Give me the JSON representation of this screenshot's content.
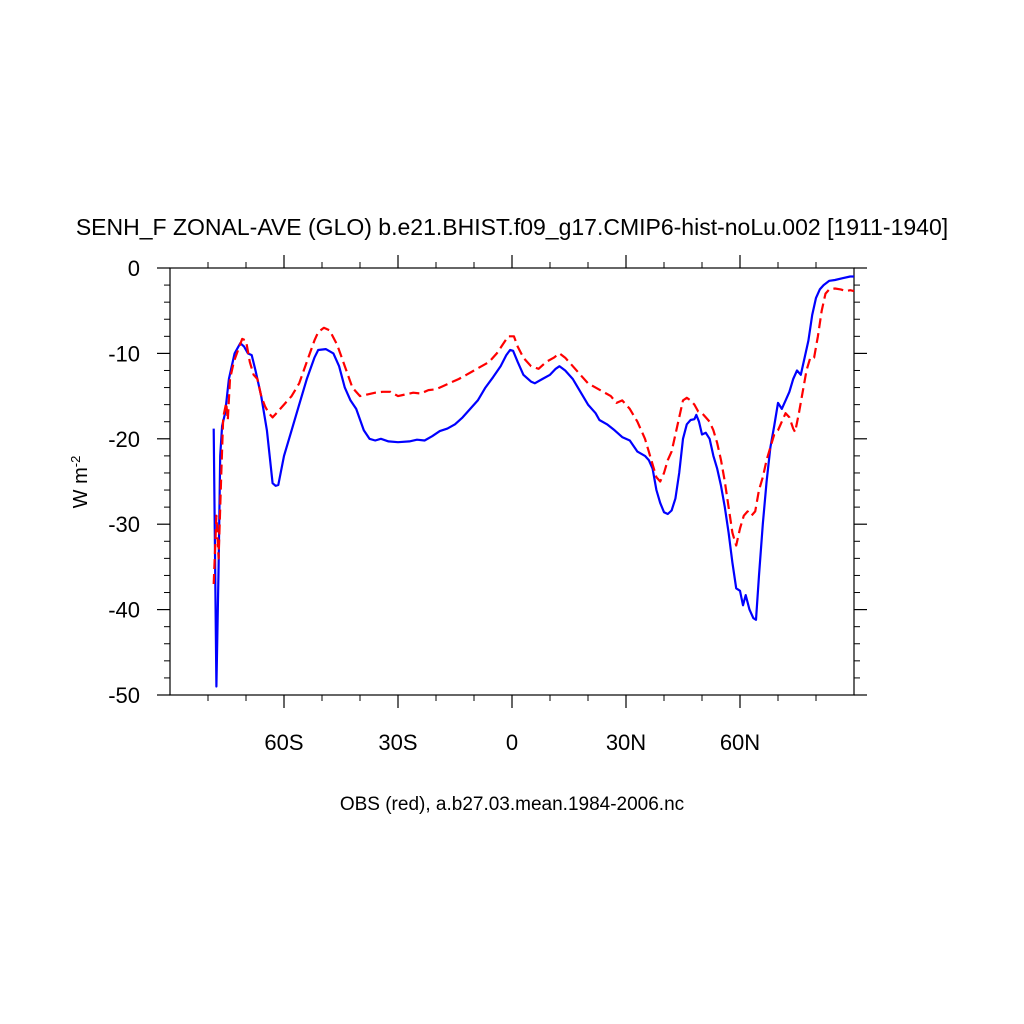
{
  "chart_data": {
    "type": "line",
    "title": "SENH_F ZONAL-AVE (GLO) b.e21.BHIST.f09_g17.CMIP6-hist-noLu.002 [1911-1940]",
    "ylabel_main": "W m",
    "ylabel_exp": "-2",
    "caption": "OBS (red), a.b27.03.mean.1984-2006.nc",
    "xlim": [
      -90,
      90
    ],
    "ylim": [
      -50,
      0
    ],
    "x_ticks": [
      {
        "value": -60,
        "label": "60S"
      },
      {
        "value": -30,
        "label": "30S"
      },
      {
        "value": 0,
        "label": "0"
      },
      {
        "value": 30,
        "label": "30N"
      },
      {
        "value": 60,
        "label": "60N"
      }
    ],
    "y_ticks": [
      {
        "value": 0,
        "label": "0"
      },
      {
        "value": -10,
        "label": "-10"
      },
      {
        "value": -20,
        "label": "-20"
      },
      {
        "value": -30,
        "label": "-30"
      },
      {
        "value": -40,
        "label": "-40"
      },
      {
        "value": -50,
        "label": "-50"
      }
    ],
    "series": [
      {
        "color": "#0000ff",
        "dash": "solid",
        "points": [
          [
            -78.5,
            -18.8
          ],
          [
            -77.8,
            -49.0
          ],
          [
            -77.2,
            -35.0
          ],
          [
            -76.8,
            -22.0
          ],
          [
            -76.3,
            -18.5
          ],
          [
            -75.5,
            -17.0
          ],
          [
            -74.5,
            -13.0
          ],
          [
            -73.0,
            -10.0
          ],
          [
            -71.5,
            -8.8
          ],
          [
            -70.5,
            -9.2
          ],
          [
            -69.5,
            -10.0
          ],
          [
            -68.5,
            -10.2
          ],
          [
            -67.5,
            -12.0
          ],
          [
            -66.0,
            -15.0
          ],
          [
            -64.5,
            -19.0
          ],
          [
            -63.0,
            -25.2
          ],
          [
            -62.2,
            -25.5
          ],
          [
            -61.5,
            -25.4
          ],
          [
            -60.0,
            -22.0
          ],
          [
            -58.0,
            -19.0
          ],
          [
            -56.0,
            -16.0
          ],
          [
            -54.0,
            -13.0
          ],
          [
            -52.0,
            -10.5
          ],
          [
            -51.0,
            -9.6
          ],
          [
            -49.0,
            -9.5
          ],
          [
            -47.0,
            -10.0
          ],
          [
            -45.5,
            -11.5
          ],
          [
            -44.0,
            -14.0
          ],
          [
            -42.5,
            -15.5
          ],
          [
            -41.0,
            -16.5
          ],
          [
            -39.0,
            -19.0
          ],
          [
            -37.5,
            -20.0
          ],
          [
            -36.0,
            -20.2
          ],
          [
            -34.5,
            -20.0
          ],
          [
            -32.5,
            -20.3
          ],
          [
            -30.0,
            -20.4
          ],
          [
            -27.0,
            -20.3
          ],
          [
            -25.0,
            -20.1
          ],
          [
            -23.0,
            -20.2
          ],
          [
            -21.0,
            -19.7
          ],
          [
            -19.0,
            -19.1
          ],
          [
            -17.0,
            -18.8
          ],
          [
            -15.0,
            -18.3
          ],
          [
            -13.0,
            -17.5
          ],
          [
            -11.0,
            -16.5
          ],
          [
            -9.0,
            -15.5
          ],
          [
            -7.0,
            -14.0
          ],
          [
            -5.0,
            -12.8
          ],
          [
            -3.0,
            -11.5
          ],
          [
            -1.5,
            -10.2
          ],
          [
            -0.5,
            -9.6
          ],
          [
            0.3,
            -9.7
          ],
          [
            1.5,
            -11.0
          ],
          [
            3.0,
            -12.5
          ],
          [
            5.0,
            -13.3
          ],
          [
            6.0,
            -13.5
          ],
          [
            8.0,
            -13.0
          ],
          [
            10.0,
            -12.5
          ],
          [
            11.5,
            -11.8
          ],
          [
            12.5,
            -11.5
          ],
          [
            14.0,
            -12.0
          ],
          [
            16.0,
            -13.0
          ],
          [
            18.0,
            -14.5
          ],
          [
            20.0,
            -16.0
          ],
          [
            22.0,
            -17.0
          ],
          [
            23.0,
            -17.8
          ],
          [
            25.0,
            -18.3
          ],
          [
            27.0,
            -19.0
          ],
          [
            29.0,
            -19.8
          ],
          [
            31.0,
            -20.2
          ],
          [
            33.0,
            -21.5
          ],
          [
            35.0,
            -22.0
          ],
          [
            36.0,
            -22.5
          ],
          [
            37.0,
            -23.5
          ],
          [
            38.0,
            -26.0
          ],
          [
            39.0,
            -27.5
          ],
          [
            40.0,
            -28.6
          ],
          [
            41.0,
            -28.8
          ],
          [
            42.0,
            -28.4
          ],
          [
            43.0,
            -27.0
          ],
          [
            44.0,
            -24.0
          ],
          [
            45.0,
            -20.0
          ],
          [
            46.0,
            -18.3
          ],
          [
            47.0,
            -17.8
          ],
          [
            48.0,
            -17.7
          ],
          [
            48.5,
            -17.2
          ],
          [
            49.2,
            -18.0
          ],
          [
            50.0,
            -19.5
          ],
          [
            51.0,
            -19.3
          ],
          [
            52.0,
            -20.0
          ],
          [
            53.0,
            -22.0
          ],
          [
            54.0,
            -23.5
          ],
          [
            55.0,
            -25.5
          ],
          [
            56.0,
            -28.0
          ],
          [
            57.0,
            -31.0
          ],
          [
            58.0,
            -34.5
          ],
          [
            59.0,
            -37.5
          ],
          [
            60.0,
            -37.8
          ],
          [
            60.8,
            -39.5
          ],
          [
            61.5,
            -38.3
          ],
          [
            62.5,
            -40.0
          ],
          [
            63.5,
            -41.0
          ],
          [
            64.2,
            -41.2
          ],
          [
            65.0,
            -36.0
          ],
          [
            66.0,
            -30.0
          ],
          [
            67.0,
            -25.0
          ],
          [
            68.0,
            -21.0
          ],
          [
            69.0,
            -18.5
          ],
          [
            70.0,
            -15.8
          ],
          [
            71.0,
            -16.5
          ],
          [
            72.0,
            -15.5
          ],
          [
            73.0,
            -14.5
          ],
          [
            74.0,
            -13.0
          ],
          [
            75.0,
            -12.0
          ],
          [
            76.0,
            -12.5
          ],
          [
            77.0,
            -10.5
          ],
          [
            78.0,
            -8.5
          ],
          [
            79.0,
            -5.5
          ],
          [
            80.0,
            -3.5
          ],
          [
            81.0,
            -2.5
          ],
          [
            82.0,
            -2.0
          ],
          [
            83.5,
            -1.5
          ],
          [
            85.0,
            -1.4
          ],
          [
            87.0,
            -1.2
          ],
          [
            89.0,
            -1.0
          ],
          [
            90.0,
            -1.0
          ]
        ]
      },
      {
        "color": "#ff0000",
        "dash": "dashed",
        "points": [
          [
            -78.5,
            -37.0
          ],
          [
            -77.8,
            -29.0
          ],
          [
            -77.2,
            -34.0
          ],
          [
            -76.5,
            -24.0
          ],
          [
            -76.0,
            -17.5
          ],
          [
            -75.2,
            -15.8
          ],
          [
            -74.8,
            -17.8
          ],
          [
            -74.2,
            -13.0
          ],
          [
            -73.2,
            -11.0
          ],
          [
            -72.0,
            -9.5
          ],
          [
            -71.0,
            -8.3
          ],
          [
            -70.0,
            -8.5
          ],
          [
            -69.0,
            -11.0
          ],
          [
            -68.0,
            -12.5
          ],
          [
            -67.0,
            -13.0
          ],
          [
            -66.0,
            -15.0
          ],
          [
            -65.0,
            -16.2
          ],
          [
            -64.0,
            -17.0
          ],
          [
            -63.0,
            -17.5
          ],
          [
            -62.0,
            -17.0
          ],
          [
            -60.0,
            -16.0
          ],
          [
            -58.0,
            -15.0
          ],
          [
            -56.0,
            -13.5
          ],
          [
            -54.0,
            -11.0
          ],
          [
            -52.0,
            -8.5
          ],
          [
            -51.0,
            -7.5
          ],
          [
            -49.5,
            -7.0
          ],
          [
            -48.0,
            -7.3
          ],
          [
            -46.0,
            -9.0
          ],
          [
            -44.0,
            -11.5
          ],
          [
            -42.0,
            -14.0
          ],
          [
            -40.0,
            -15.0
          ],
          [
            -38.0,
            -14.8
          ],
          [
            -36.0,
            -14.6
          ],
          [
            -34.0,
            -14.5
          ],
          [
            -32.0,
            -14.5
          ],
          [
            -30.0,
            -15.0
          ],
          [
            -28.0,
            -14.8
          ],
          [
            -26.0,
            -14.6
          ],
          [
            -24.0,
            -14.7
          ],
          [
            -22.0,
            -14.3
          ],
          [
            -20.0,
            -14.2
          ],
          [
            -18.0,
            -13.8
          ],
          [
            -16.0,
            -13.4
          ],
          [
            -14.0,
            -13.0
          ],
          [
            -12.0,
            -12.5
          ],
          [
            -10.0,
            -12.0
          ],
          [
            -8.0,
            -11.5
          ],
          [
            -6.0,
            -11.0
          ],
          [
            -4.0,
            -10.0
          ],
          [
            -2.5,
            -9.0
          ],
          [
            -1.0,
            -8.0
          ],
          [
            0.5,
            -8.0
          ],
          [
            1.5,
            -9.2
          ],
          [
            3.0,
            -10.5
          ],
          [
            5.0,
            -11.5
          ],
          [
            7.0,
            -11.8
          ],
          [
            9.0,
            -11.0
          ],
          [
            11.0,
            -10.5
          ],
          [
            12.5,
            -10.0
          ],
          [
            14.0,
            -10.5
          ],
          [
            16.0,
            -11.5
          ],
          [
            18.0,
            -12.5
          ],
          [
            20.0,
            -13.5
          ],
          [
            22.0,
            -14.0
          ],
          [
            24.0,
            -14.5
          ],
          [
            26.0,
            -15.0
          ],
          [
            27.5,
            -15.8
          ],
          [
            29.0,
            -15.5
          ],
          [
            31.0,
            -16.5
          ],
          [
            33.0,
            -18.0
          ],
          [
            35.0,
            -20.0
          ],
          [
            36.0,
            -21.5
          ],
          [
            37.0,
            -23.0
          ],
          [
            38.0,
            -24.5
          ],
          [
            39.0,
            -25.0
          ],
          [
            40.0,
            -24.0
          ],
          [
            41.0,
            -22.5
          ],
          [
            42.0,
            -21.5
          ],
          [
            43.0,
            -19.5
          ],
          [
            44.0,
            -17.5
          ],
          [
            45.0,
            -15.5
          ],
          [
            46.0,
            -15.2
          ],
          [
            47.0,
            -15.5
          ],
          [
            48.0,
            -16.0
          ],
          [
            49.0,
            -16.8
          ],
          [
            50.0,
            -17.0
          ],
          [
            51.0,
            -17.5
          ],
          [
            52.0,
            -18.0
          ],
          [
            53.0,
            -19.0
          ],
          [
            54.0,
            -20.5
          ],
          [
            55.0,
            -22.5
          ],
          [
            56.0,
            -25.0
          ],
          [
            57.0,
            -28.0
          ],
          [
            58.0,
            -31.0
          ],
          [
            59.0,
            -32.5
          ],
          [
            60.0,
            -30.5
          ],
          [
            61.0,
            -29.0
          ],
          [
            62.0,
            -28.5
          ],
          [
            63.0,
            -29.0
          ],
          [
            64.0,
            -28.5
          ],
          [
            65.0,
            -26.0
          ],
          [
            66.0,
            -24.5
          ],
          [
            67.0,
            -22.5
          ],
          [
            68.0,
            -21.0
          ],
          [
            69.0,
            -19.5
          ],
          [
            70.0,
            -19.0
          ],
          [
            71.0,
            -18.0
          ],
          [
            72.0,
            -17.0
          ],
          [
            73.0,
            -17.5
          ],
          [
            74.0,
            -18.8
          ],
          [
            74.5,
            -19.2
          ],
          [
            75.5,
            -17.0
          ],
          [
            76.5,
            -14.5
          ],
          [
            77.5,
            -12.0
          ],
          [
            78.5,
            -10.5
          ],
          [
            79.5,
            -10.5
          ],
          [
            80.5,
            -8.0
          ],
          [
            81.5,
            -5.0
          ],
          [
            82.5,
            -3.0
          ],
          [
            83.5,
            -2.5
          ],
          [
            85.0,
            -2.4
          ],
          [
            86.5,
            -2.5
          ],
          [
            88.0,
            -2.7
          ],
          [
            89.0,
            -2.6
          ],
          [
            90.0,
            -2.7
          ]
        ]
      }
    ]
  }
}
